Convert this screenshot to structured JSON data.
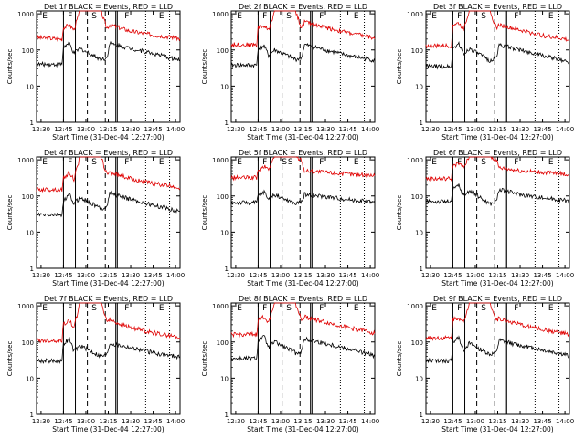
{
  "figure": {
    "x_ticks": [
      "12:30",
      "12:45",
      "13:00",
      "13:15",
      "13:30",
      "13:45",
      "14:00"
    ],
    "y_ticks": [
      "1",
      "10",
      "100",
      "1000"
    ],
    "xlabel": "Start Time (31-Dec-04 12:27:00)",
    "ylabel": "Counts/sec",
    "colors": {
      "events": "#000000",
      "lld": "#e00000",
      "axes": "#000000"
    }
  },
  "chart_data": [
    {
      "type": "line",
      "title": "Det 1f BLACK = Events, RED = LLD",
      "ylim": [
        1,
        1200
      ],
      "yscale": "log",
      "xlim": [
        "12:27",
        "14:03"
      ],
      "markers": [
        "E",
        "F",
        "S",
        "F",
        "E"
      ],
      "series": [
        {
          "x": [
            "12:27",
            "12:44",
            "12:45",
            "12:49",
            "12:52",
            "12:56",
            "13:10",
            "13:14",
            "13:16",
            "13:30",
            "13:45",
            "14:00",
            "14:03"
          ],
          "values": [
            220,
            200,
            420,
            480,
            360,
            1200,
            1200,
            400,
            500,
            330,
            260,
            220,
            200
          ]
        },
        {
          "x": [
            "12:27",
            "12:44",
            "12:45",
            "12:49",
            "12:52",
            "12:56",
            "13:10",
            "13:14",
            "13:16",
            "13:30",
            "13:45",
            "14:00",
            "14:03"
          ],
          "values": [
            40,
            40,
            120,
            150,
            80,
            110,
            55,
            60,
            150,
            110,
            80,
            55,
            50
          ]
        }
      ]
    },
    {
      "type": "line",
      "title": "Det 2f BLACK = Events, RED = LLD",
      "ylim": [
        1,
        1200
      ],
      "yscale": "log",
      "xlim": [
        "12:27",
        "14:03"
      ],
      "markers": [
        "E",
        "F",
        "S",
        "F",
        "E"
      ],
      "series": [
        {
          "x": [
            "12:27",
            "12:44",
            "12:45",
            "12:49",
            "12:52",
            "12:56",
            "13:10",
            "13:14",
            "13:16",
            "13:30",
            "13:45",
            "14:00",
            "14:03"
          ],
          "values": [
            140,
            140,
            420,
            450,
            350,
            1200,
            1200,
            400,
            600,
            420,
            300,
            230,
            200
          ]
        },
        {
          "x": [
            "12:27",
            "12:44",
            "12:45",
            "12:49",
            "12:52",
            "12:56",
            "13:10",
            "13:14",
            "13:16",
            "13:30",
            "13:45",
            "14:00",
            "14:03"
          ],
          "values": [
            38,
            38,
            110,
            130,
            70,
            100,
            55,
            60,
            140,
            100,
            70,
            55,
            50
          ]
        }
      ]
    },
    {
      "type": "line",
      "title": "Det 3f BLACK = Events, RED = LLD",
      "ylim": [
        1,
        1200
      ],
      "yscale": "log",
      "xlim": [
        "12:27",
        "14:03"
      ],
      "markers": [
        "E",
        "F",
        "S",
        "F",
        "E"
      ],
      "series": [
        {
          "x": [
            "12:27",
            "12:44",
            "12:45",
            "12:49",
            "12:52",
            "12:56",
            "13:10",
            "13:14",
            "13:16",
            "13:30",
            "13:45",
            "14:00",
            "14:03"
          ],
          "values": [
            130,
            130,
            500,
            550,
            380,
            1200,
            1200,
            400,
            500,
            350,
            250,
            200,
            180
          ]
        },
        {
          "x": [
            "12:27",
            "12:44",
            "12:45",
            "12:49",
            "12:52",
            "12:56",
            "13:10",
            "13:14",
            "13:16",
            "13:30",
            "13:45",
            "14:00",
            "14:03"
          ],
          "values": [
            35,
            35,
            110,
            150,
            75,
            110,
            50,
            60,
            140,
            100,
            70,
            50,
            45
          ]
        }
      ]
    },
    {
      "type": "line",
      "title": "Det 4f BLACK = Events, RED = LLD",
      "ylim": [
        1,
        1200
      ],
      "yscale": "log",
      "xlim": [
        "12:27",
        "14:03"
      ],
      "markers": [
        "E",
        "F",
        "S",
        "F",
        "E"
      ],
      "series": [
        {
          "x": [
            "12:27",
            "12:44",
            "12:45",
            "12:49",
            "12:52",
            "12:56",
            "13:10",
            "13:14",
            "13:16",
            "13:30",
            "13:45",
            "14:00",
            "14:03"
          ],
          "values": [
            150,
            150,
            300,
            450,
            280,
            1200,
            1200,
            400,
            450,
            300,
            220,
            180,
            160
          ]
        },
        {
          "x": [
            "12:27",
            "12:44",
            "12:45",
            "12:49",
            "12:52",
            "12:56",
            "13:10",
            "13:14",
            "13:16",
            "13:30",
            "13:45",
            "14:00",
            "14:03"
          ],
          "values": [
            30,
            30,
            70,
            110,
            60,
            90,
            45,
            50,
            120,
            80,
            55,
            40,
            38
          ]
        }
      ]
    },
    {
      "type": "line",
      "title": "Det 5f BLACK = Events, RED = LLD",
      "ylim": [
        1,
        1200
      ],
      "yscale": "log",
      "xlim": [
        "12:27",
        "14:03"
      ],
      "markers": [
        "E",
        "F",
        "S",
        "S",
        "F",
        "E"
      ],
      "series": [
        {
          "x": [
            "12:27",
            "12:44",
            "12:45",
            "12:49",
            "12:52",
            "12:56",
            "13:10",
            "13:14",
            "13:16",
            "13:30",
            "13:45",
            "14:00",
            "14:03"
          ],
          "values": [
            320,
            320,
            500,
            650,
            550,
            1200,
            1200,
            1000,
            500,
            450,
            400,
            380,
            360
          ]
        },
        {
          "x": [
            "12:27",
            "12:44",
            "12:45",
            "12:49",
            "12:52",
            "12:56",
            "13:10",
            "13:14",
            "13:16",
            "13:30",
            "13:45",
            "14:00",
            "14:03"
          ],
          "values": [
            65,
            65,
            100,
            130,
            80,
            110,
            60,
            70,
            110,
            95,
            80,
            70,
            65
          ]
        }
      ]
    },
    {
      "type": "line",
      "title": "Det 6f BLACK = Events, RED = LLD",
      "ylim": [
        1,
        1200
      ],
      "yscale": "log",
      "xlim": [
        "12:27",
        "14:03"
      ],
      "markers": [
        "E",
        "F",
        "S",
        "F",
        "E"
      ],
      "series": [
        {
          "x": [
            "12:27",
            "12:44",
            "12:45",
            "12:49",
            "12:52",
            "12:56",
            "13:10",
            "13:14",
            "13:16",
            "13:30",
            "13:45",
            "14:00",
            "14:03"
          ],
          "values": [
            300,
            300,
            700,
            800,
            600,
            1200,
            1200,
            1000,
            600,
            500,
            450,
            400,
            380
          ]
        },
        {
          "x": [
            "12:27",
            "12:44",
            "12:45",
            "12:49",
            "12:52",
            "12:56",
            "13:10",
            "13:14",
            "13:16",
            "13:30",
            "13:45",
            "14:00",
            "14:03"
          ],
          "values": [
            70,
            70,
            150,
            200,
            100,
            140,
            60,
            70,
            150,
            110,
            90,
            75,
            70
          ]
        }
      ]
    },
    {
      "type": "line",
      "title": "Det 7f BLACK = Events, RED = LLD",
      "ylim": [
        1,
        1200
      ],
      "yscale": "log",
      "xlim": [
        "12:27",
        "14:03"
      ],
      "markers": [
        "E",
        "F",
        "S",
        "F",
        "E"
      ],
      "series": [
        {
          "x": [
            "12:27",
            "12:44",
            "12:45",
            "12:49",
            "12:52",
            "12:56",
            "13:10",
            "13:14",
            "13:16",
            "13:30",
            "13:45",
            "14:00",
            "14:03"
          ],
          "values": [
            110,
            110,
            320,
            380,
            250,
            1200,
            1200,
            400,
            400,
            250,
            180,
            140,
            130
          ]
        },
        {
          "x": [
            "12:27",
            "12:44",
            "12:45",
            "12:49",
            "12:52",
            "12:56",
            "13:10",
            "13:14",
            "13:16",
            "13:30",
            "13:45",
            "14:00",
            "14:03"
          ],
          "values": [
            30,
            30,
            90,
            120,
            55,
            80,
            40,
            45,
            90,
            70,
            50,
            40,
            38
          ]
        }
      ]
    },
    {
      "type": "line",
      "title": "Det 8f BLACK = Events, RED = LLD",
      "ylim": [
        1,
        1200
      ],
      "yscale": "log",
      "xlim": [
        "12:27",
        "14:03"
      ],
      "markers": [
        "E",
        "F",
        "S",
        "F",
        "E"
      ],
      "series": [
        {
          "x": [
            "12:27",
            "12:44",
            "12:45",
            "12:49",
            "12:52",
            "12:56",
            "13:10",
            "13:14",
            "13:16",
            "13:30",
            "13:45",
            "14:00",
            "14:03"
          ],
          "values": [
            160,
            160,
            400,
            500,
            350,
            1200,
            1200,
            400,
            500,
            350,
            250,
            190,
            170
          ]
        },
        {
          "x": [
            "12:27",
            "12:44",
            "12:45",
            "12:49",
            "12:52",
            "12:56",
            "13:10",
            "13:14",
            "13:16",
            "13:30",
            "13:45",
            "14:00",
            "14:03"
          ],
          "values": [
            35,
            35,
            110,
            140,
            70,
            100,
            50,
            55,
            120,
            90,
            65,
            45,
            40
          ]
        }
      ]
    },
    {
      "type": "line",
      "title": "Det 9f BLACK = Events, RED = LLD",
      "ylim": [
        1,
        1200
      ],
      "yscale": "log",
      "xlim": [
        "12:27",
        "14:03"
      ],
      "markers": [
        "E",
        "F",
        "S",
        "F",
        "E"
      ],
      "series": [
        {
          "x": [
            "12:27",
            "12:44",
            "12:45",
            "12:49",
            "12:52",
            "12:56",
            "13:10",
            "13:14",
            "13:16",
            "13:30",
            "13:45",
            "14:00",
            "14:03"
          ],
          "values": [
            130,
            130,
            420,
            480,
            320,
            1200,
            1200,
            400,
            450,
            300,
            220,
            170,
            150
          ]
        },
        {
          "x": [
            "12:27",
            "12:44",
            "12:45",
            "12:49",
            "12:52",
            "12:56",
            "13:10",
            "13:14",
            "13:16",
            "13:30",
            "13:45",
            "14:00",
            "14:03"
          ],
          "values": [
            30,
            30,
            100,
            130,
            60,
            90,
            45,
            50,
            110,
            80,
            60,
            45,
            40
          ]
        }
      ]
    }
  ]
}
